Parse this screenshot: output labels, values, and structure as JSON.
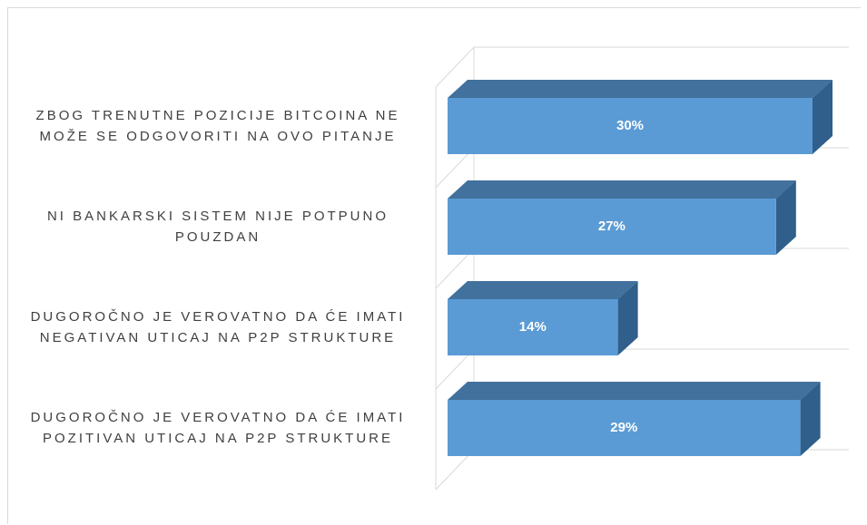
{
  "chart_data": {
    "type": "bar3d-horizontal",
    "categories": [
      "ZBOG TRENUTNE POZICIJE BITCOINA NE MOŽE SE ODGOVORITI NA OVO PITANJE",
      "NI BANKARSKI SISTEM NIJE POTPUNO POUZDAN",
      "DUGOROČNO JE VEROVATNO DA ĆE IMATI NEGATIVAN UTICAJ NA P2P STRUKTURE",
      "DUGOROČNO JE VEROVATNO DA ĆE IMATI POZITIVAN UTICAJ NA P2P STRUKTURE"
    ],
    "values": [
      30,
      27,
      14,
      29
    ],
    "value_labels": [
      "30%",
      "27%",
      "14%",
      "29%"
    ],
    "color": "#5b9bd5"
  }
}
